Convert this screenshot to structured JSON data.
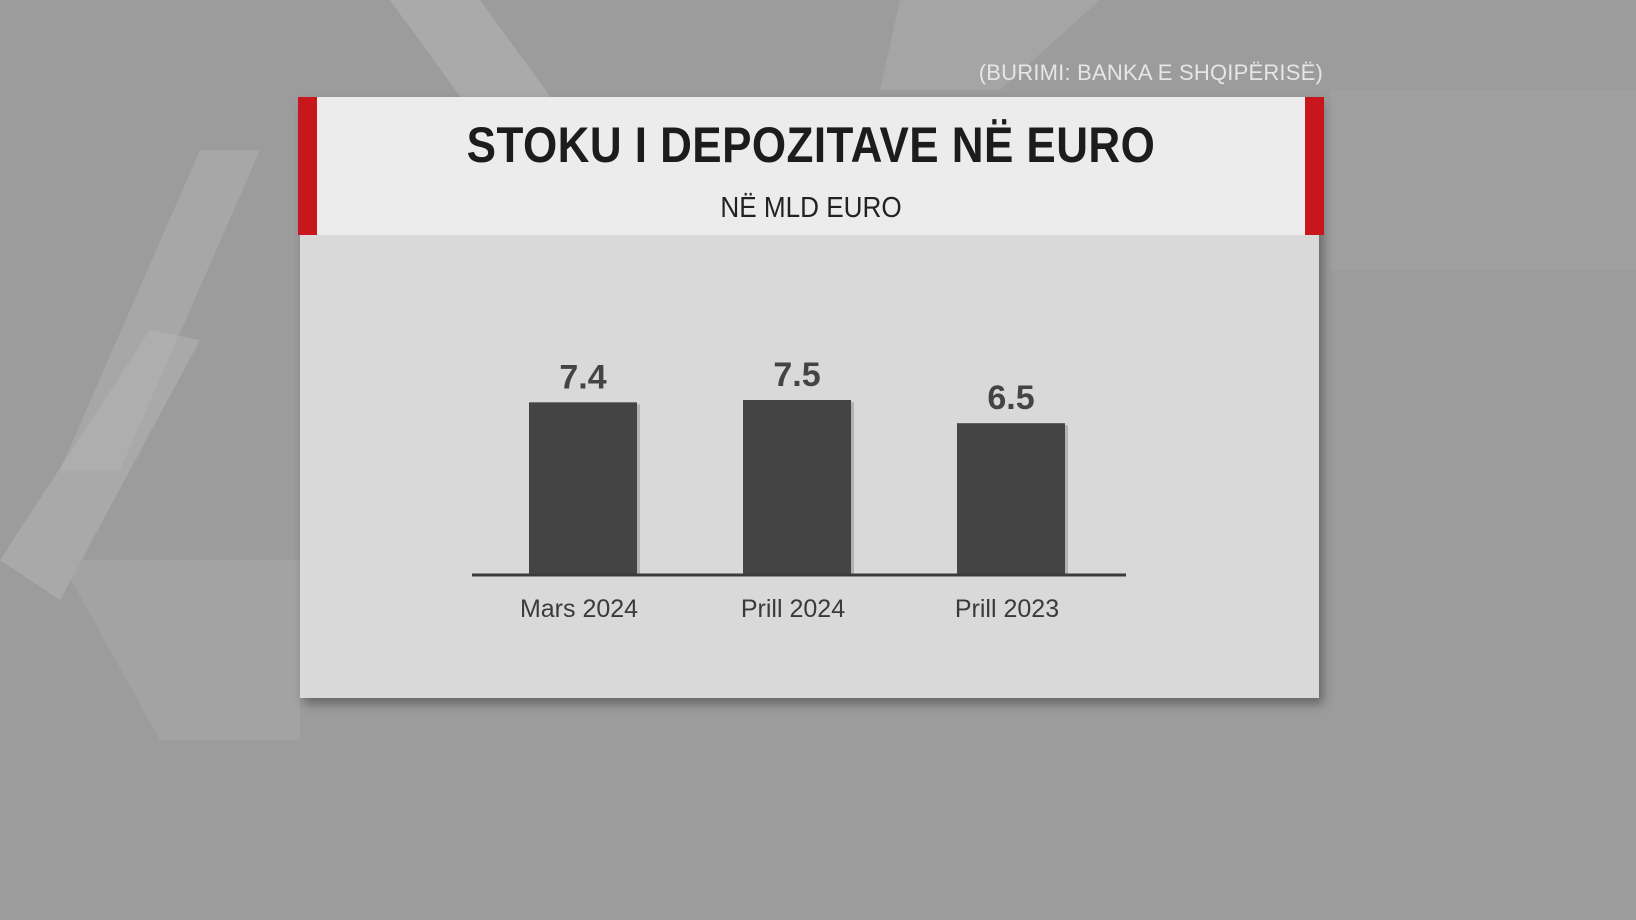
{
  "source": "(BURIMI: BANKA  E SHQIPËRISË)",
  "chart_data": {
    "type": "bar",
    "title": "STOKU I DEPOZITAVE NË EURO",
    "subtitle": "NË MLD EURO",
    "categories": [
      "Mars 2024",
      "Prill 2024",
      "Prill 2023"
    ],
    "values": [
      7.4,
      7.5,
      6.5
    ],
    "data_labels": [
      "7.4",
      "7.5",
      "6.5"
    ],
    "xlabel": "",
    "ylabel": "",
    "ylim": [
      0,
      7.5
    ],
    "grid": false,
    "legend": "none",
    "colors": {
      "bar": "#444444",
      "accent": "#c8161d",
      "panel": "#d9d9d9",
      "header": "#ececec"
    }
  }
}
